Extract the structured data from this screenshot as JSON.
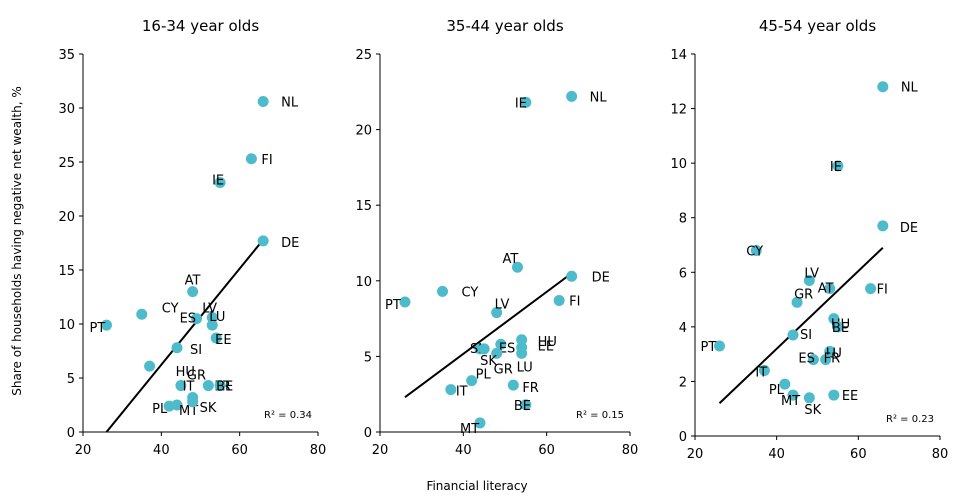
{
  "figure": {
    "ylabel": "Share of households having negative net wealth, %",
    "xlabel": "Financial literacy"
  },
  "chart_data": [
    {
      "type": "scatter",
      "title": "16-34 year olds",
      "xlim": [
        20,
        80
      ],
      "ylim": [
        0,
        35
      ],
      "xticks": [
        20,
        40,
        60,
        80
      ],
      "yticks": [
        0,
        5,
        10,
        15,
        20,
        25,
        30,
        35
      ],
      "r2": "R² = 0.34",
      "trend": {
        "x": [
          26,
          66
        ],
        "y": [
          0,
          17.8
        ]
      },
      "points": [
        {
          "label": "NL",
          "x": 66,
          "y": 30.6
        },
        {
          "label": "FI",
          "x": 63,
          "y": 25.3
        },
        {
          "label": "IE",
          "x": 55,
          "y": 23.1
        },
        {
          "label": "DE",
          "x": 66,
          "y": 17.7
        },
        {
          "label": "AT",
          "x": 48,
          "y": 13.0
        },
        {
          "label": "CY",
          "x": 35,
          "y": 10.9
        },
        {
          "label": "ES",
          "x": 49,
          "y": 10.5
        },
        {
          "label": "LV",
          "x": 53,
          "y": 10.6
        },
        {
          "label": "LU",
          "x": 53,
          "y": 9.9
        },
        {
          "label": "EE",
          "x": 54,
          "y": 8.7
        },
        {
          "label": "PT",
          "x": 26,
          "y": 9.9
        },
        {
          "label": "SI",
          "x": 44,
          "y": 7.8
        },
        {
          "label": "HU",
          "x": 37,
          "y": 6.1
        },
        {
          "label": "GR",
          "x": 45,
          "y": 4.3
        },
        {
          "label": "FR",
          "x": 52,
          "y": 4.3
        },
        {
          "label": "BE",
          "x": 55,
          "y": 4.3
        },
        {
          "label": "IT",
          "x": 48,
          "y": 3.2
        },
        {
          "label": "PL",
          "x": 42,
          "y": 2.4
        },
        {
          "label": "MT",
          "x": 44,
          "y": 2.5
        },
        {
          "label": "SK",
          "x": 48,
          "y": 2.8
        }
      ]
    },
    {
      "type": "scatter",
      "title": "35-44 year olds",
      "xlim": [
        20,
        80
      ],
      "ylim": [
        0,
        25
      ],
      "xticks": [
        20,
        40,
        60,
        80
      ],
      "yticks": [
        0,
        5,
        10,
        15,
        20,
        25
      ],
      "r2": "R² = 0.15",
      "trend": {
        "x": [
          26,
          66
        ],
        "y": [
          2.3,
          10.5
        ]
      },
      "points": [
        {
          "label": "NL",
          "x": 66,
          "y": 22.2
        },
        {
          "label": "IE",
          "x": 55,
          "y": 21.8
        },
        {
          "label": "AT",
          "x": 53,
          "y": 10.9
        },
        {
          "label": "DE",
          "x": 66,
          "y": 10.3
        },
        {
          "label": "CY",
          "x": 35,
          "y": 9.3
        },
        {
          "label": "FI",
          "x": 63,
          "y": 8.7
        },
        {
          "label": "PT",
          "x": 26,
          "y": 8.6
        },
        {
          "label": "LV",
          "x": 48,
          "y": 7.9
        },
        {
          "label": "ES",
          "x": 49,
          "y": 5.8
        },
        {
          "label": "HU",
          "x": 54,
          "y": 6.1
        },
        {
          "label": "EE",
          "x": 54,
          "y": 5.6
        },
        {
          "label": "SI",
          "x": 44,
          "y": 5.5
        },
        {
          "label": "GR",
          "x": 48,
          "y": 5.2
        },
        {
          "label": "SK",
          "x": 45,
          "y": 5.5
        },
        {
          "label": "LU",
          "x": 54,
          "y": 5.2
        },
        {
          "label": "IT",
          "x": 37,
          "y": 2.8
        },
        {
          "label": "PL",
          "x": 42,
          "y": 3.4
        },
        {
          "label": "FR",
          "x": 52,
          "y": 3.1
        },
        {
          "label": "BE",
          "x": 55,
          "y": 1.8
        },
        {
          "label": "MT",
          "x": 44,
          "y": 0.6
        }
      ]
    },
    {
      "type": "scatter",
      "title": "45-54 year olds",
      "xlim": [
        20,
        80
      ],
      "ylim": [
        0,
        14
      ],
      "xticks": [
        20,
        40,
        60,
        80
      ],
      "yticks": [
        0,
        2,
        4,
        6,
        8,
        10,
        12,
        14
      ],
      "r2": "R² = 0.23",
      "trend": {
        "x": [
          26,
          66
        ],
        "y": [
          1.2,
          6.9
        ]
      },
      "points": [
        {
          "label": "NL",
          "x": 66,
          "y": 12.8
        },
        {
          "label": "IE",
          "x": 55,
          "y": 9.9
        },
        {
          "label": "DE",
          "x": 66,
          "y": 7.7
        },
        {
          "label": "CY",
          "x": 35,
          "y": 6.8
        },
        {
          "label": "LV",
          "x": 48,
          "y": 5.7
        },
        {
          "label": "AT",
          "x": 53,
          "y": 5.4
        },
        {
          "label": "FI",
          "x": 63,
          "y": 5.4
        },
        {
          "label": "GR",
          "x": 45,
          "y": 4.9
        },
        {
          "label": "HU",
          "x": 54,
          "y": 4.3
        },
        {
          "label": "BE",
          "x": 55,
          "y": 4.0
        },
        {
          "label": "SI",
          "x": 44,
          "y": 3.7
        },
        {
          "label": "PT",
          "x": 26,
          "y": 3.3
        },
        {
          "label": "LU",
          "x": 53,
          "y": 3.1
        },
        {
          "label": "ES",
          "x": 49,
          "y": 2.8
        },
        {
          "label": "FR",
          "x": 52,
          "y": 2.8
        },
        {
          "label": "IT",
          "x": 37,
          "y": 2.4
        },
        {
          "label": "PL",
          "x": 42,
          "y": 1.9
        },
        {
          "label": "MT",
          "x": 44,
          "y": 1.5
        },
        {
          "label": "SK",
          "x": 48,
          "y": 1.4
        },
        {
          "label": "EE",
          "x": 54,
          "y": 1.5
        }
      ]
    }
  ],
  "colors": {
    "marker": "#4dbbcb",
    "trend": "#000000",
    "axis": "#000000"
  }
}
